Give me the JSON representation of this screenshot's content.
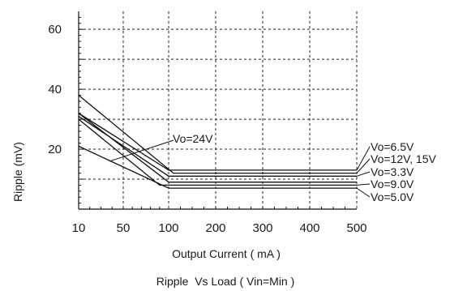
{
  "chart_data": {
    "type": "line",
    "title": "Ripple  Vs Load ( Vin=Min )",
    "xlabel": "Output Current ( mA )",
    "ylabel": "Ripple (mV)",
    "xlim": [
      10,
      500
    ],
    "ylim": [
      0,
      66
    ],
    "x_ticks": [
      10,
      50,
      100,
      200,
      300,
      400,
      500
    ],
    "y_ticks": [
      20,
      40,
      60
    ],
    "x_grid": [
      50,
      100,
      200,
      300,
      400,
      500
    ],
    "y_grid": [
      10,
      20,
      30,
      40,
      50,
      60
    ],
    "grid": true,
    "series": [
      {
        "name": "Vo=6.5V",
        "points": [
          [
            10,
            32
          ],
          [
            100,
            13
          ],
          [
            120,
            13
          ],
          [
            500,
            13
          ]
        ]
      },
      {
        "name": "Vo=12V, 15V",
        "points": [
          [
            10,
            38
          ],
          [
            110,
            12
          ],
          [
            500,
            12
          ]
        ]
      },
      {
        "name": "Vo=3.3V",
        "points": [
          [
            10,
            31
          ],
          [
            100,
            11
          ],
          [
            500,
            11
          ]
        ]
      },
      {
        "name": "Vo=24V",
        "points": [
          [
            10,
            32
          ],
          [
            100,
            9
          ],
          [
            500,
            9
          ]
        ]
      },
      {
        "name": "Vo=9.0V",
        "points": [
          [
            10,
            30
          ],
          [
            90,
            8
          ],
          [
            500,
            8
          ]
        ]
      },
      {
        "name": "Vo=5.0V",
        "points": [
          [
            10,
            21
          ],
          [
            100,
            7
          ],
          [
            500,
            7
          ]
        ]
      }
    ]
  }
}
